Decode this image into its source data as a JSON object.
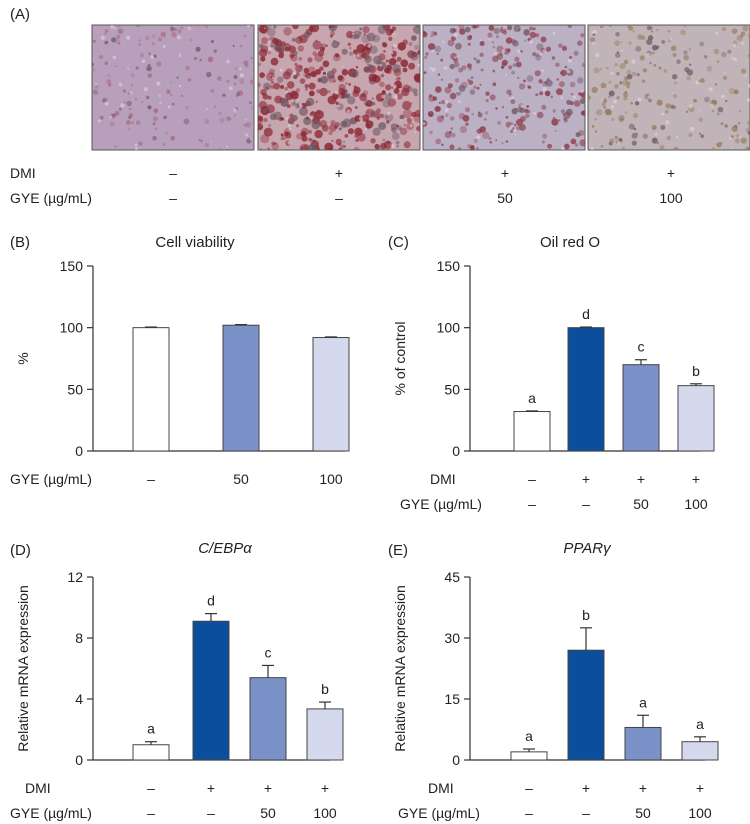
{
  "panel_a": {
    "letter": "(A)",
    "rows": [
      {
        "label": "DMI",
        "values": [
          "–",
          "+",
          "+",
          "+"
        ]
      },
      {
        "label": "GYE (µg/mL)",
        "values": [
          "–",
          "–",
          "50",
          "100"
        ]
      }
    ],
    "photos": [
      {
        "name": "micrograph-control",
        "base": "#b8a0bc",
        "stain": "#a86a82",
        "density": 0.18
      },
      {
        "name": "micrograph-dmi",
        "base": "#c8a6b0",
        "stain": "#8a2430",
        "density": 0.85
      },
      {
        "name": "micrograph-gye-50",
        "base": "#bcb0c4",
        "stain": "#8c3a48",
        "density": 0.45
      },
      {
        "name": "micrograph-gye-100",
        "base": "#c0b4b8",
        "stain": "#9a7a5a",
        "density": 0.3
      }
    ]
  },
  "colors": {
    "white": "#ffffff",
    "dark_blue": "#0b4f9c",
    "mid_blue": "#7a92c8",
    "light_blue": "#d4d9ee"
  },
  "chart_data": [
    {
      "id": "B",
      "letter": "(B)",
      "type": "bar",
      "title": "Cell viability",
      "ylabel": "%",
      "ylim": [
        0,
        150
      ],
      "yticks": [
        "0",
        "50",
        "100",
        "150"
      ],
      "values": [
        100,
        102,
        92
      ],
      "errors": [
        0.5,
        0.5,
        0.5
      ],
      "colors": [
        "white",
        "mid_blue",
        "light_blue"
      ],
      "sig": [
        "",
        "",
        ""
      ],
      "rows": [
        {
          "label": "GYE (µg/mL)",
          "values": [
            "–",
            "50",
            "100"
          ]
        }
      ]
    },
    {
      "id": "C",
      "letter": "(C)",
      "type": "bar",
      "title": "Oil red O",
      "ylabel": "% of control",
      "ylim": [
        0,
        150
      ],
      "yticks": [
        "0",
        "50",
        "100",
        "150"
      ],
      "values": [
        32,
        100,
        70,
        53
      ],
      "errors": [
        0.5,
        0.5,
        4,
        1.5
      ],
      "colors": [
        "white",
        "dark_blue",
        "mid_blue",
        "light_blue"
      ],
      "sig": [
        "a",
        "d",
        "c",
        "b"
      ],
      "rows": [
        {
          "label": "DMI",
          "values": [
            "–",
            "+",
            "+",
            "+"
          ]
        },
        {
          "label": "GYE (µg/mL)",
          "values": [
            "–",
            "–",
            "50",
            "100"
          ]
        }
      ]
    },
    {
      "id": "D",
      "letter": "(D)",
      "type": "bar",
      "title": "C/EBPα",
      "ylabel": "Relative mRNA expression",
      "ylim": [
        0,
        12
      ],
      "yticks": [
        "0",
        "4",
        "8",
        "12"
      ],
      "values": [
        1.0,
        9.1,
        5.4,
        3.35
      ],
      "errors": [
        0.2,
        0.5,
        0.8,
        0.45
      ],
      "colors": [
        "white",
        "dark_blue",
        "mid_blue",
        "light_blue"
      ],
      "sig": [
        "a",
        "d",
        "c",
        "b"
      ],
      "rows": [
        {
          "label": "DMI",
          "values": [
            "–",
            "+",
            "+",
            "+"
          ]
        },
        {
          "label": "GYE (µg/mL)",
          "values": [
            "–",
            "–",
            "50",
            "100"
          ]
        }
      ]
    },
    {
      "id": "E",
      "letter": "(E)",
      "type": "bar",
      "title": "PPARγ",
      "ylabel": "Relative mRNA expression",
      "ylim": [
        0,
        45
      ],
      "yticks": [
        "0",
        "15",
        "30",
        "45"
      ],
      "values": [
        2.0,
        27,
        8.0,
        4.5
      ],
      "errors": [
        0.7,
        5.5,
        3.0,
        1.2
      ],
      "colors": [
        "white",
        "dark_blue",
        "mid_blue",
        "light_blue"
      ],
      "sig": [
        "a",
        "b",
        "a",
        "a"
      ],
      "rows": [
        {
          "label": "DMI",
          "values": [
            "–",
            "+",
            "+",
            "+"
          ]
        },
        {
          "label": "GYE (µg/mL)",
          "values": [
            "–",
            "–",
            "50",
            "100"
          ]
        }
      ]
    }
  ]
}
